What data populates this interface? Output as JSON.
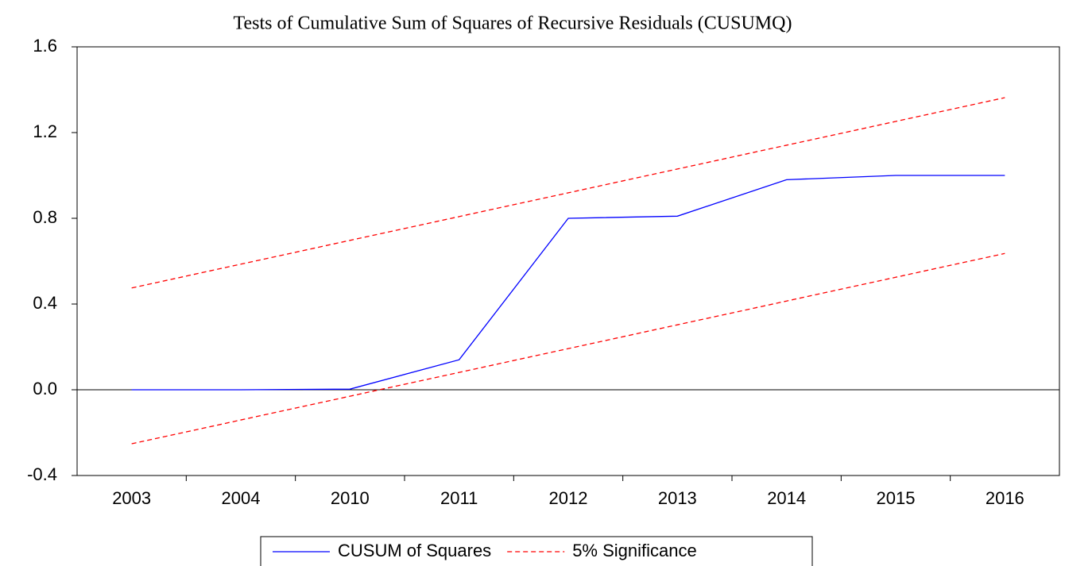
{
  "chart_data": {
    "type": "line",
    "title": "Tests of Cumulative Sum of Squares of Recursive Residuals (CUSUMQ)",
    "categories": [
      "2003",
      "2004",
      "2010",
      "2011",
      "2012",
      "2013",
      "2014",
      "2015",
      "2016"
    ],
    "series": [
      {
        "name": "CUSUM of Squares",
        "color": "#0000ff",
        "dash": false,
        "values": [
          0.0,
          0.0,
          0.003,
          0.14,
          0.8,
          0.81,
          0.98,
          1.0,
          1.0
        ]
      },
      {
        "name": "5% Significance",
        "color": "#ff0000",
        "dash": true,
        "values": [
          0.475,
          0.586,
          0.697,
          0.808,
          0.919,
          1.03,
          1.141,
          1.252,
          1.363
        ]
      },
      {
        "color": "#ff0000",
        "dash": true,
        "values": [
          -0.252,
          -0.141,
          -0.03,
          0.081,
          0.192,
          0.303,
          0.414,
          0.525,
          0.636
        ]
      }
    ],
    "ylim": [
      -0.4,
      1.6
    ],
    "yticks": [
      -0.4,
      {
        "value": 0,
        "label": "0.0"
      },
      0.4,
      0.8,
      1.2,
      1.6
    ],
    "zero_line": true
  }
}
